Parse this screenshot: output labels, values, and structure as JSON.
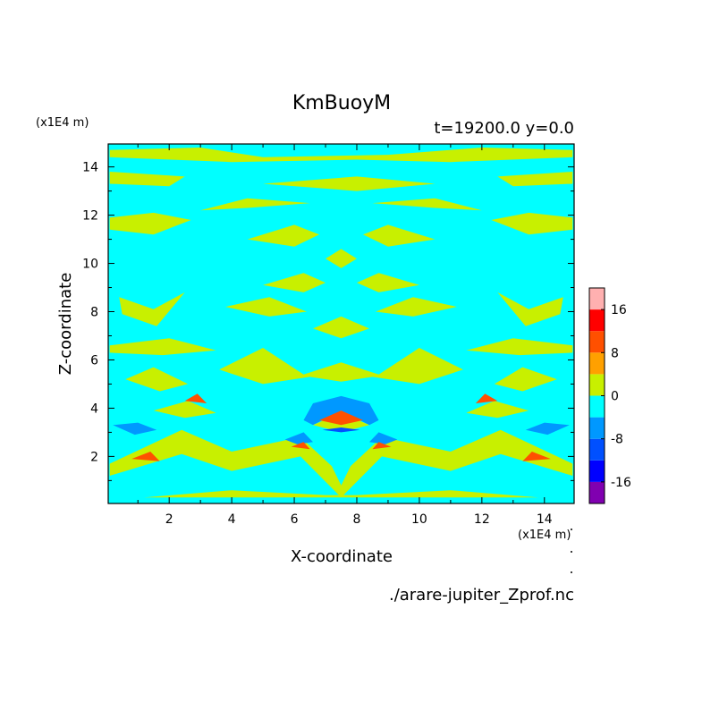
{
  "chart_data": {
    "type": "heatmap",
    "title": "KmBuoyM",
    "subtitle": "t=19200.0 y=0.0",
    "xlabel": "X-coordinate",
    "ylabel": "Z-coordinate",
    "x_unit": "(x1E4 m)",
    "y_unit": "(x1E4 m)",
    "xlim": [
      0.05,
      14.95
    ],
    "ylim": [
      0.05,
      14.95
    ],
    "x_ticks": [
      2,
      4,
      6,
      8,
      10,
      12,
      14
    ],
    "y_ticks": [
      2,
      4,
      6,
      8,
      10,
      12,
      14
    ],
    "grid": false,
    "colorbar": {
      "position": "right",
      "levels": [
        -20,
        -16,
        -12,
        -8,
        -4,
        0,
        4,
        8,
        12,
        16,
        20
      ],
      "tick_labels": [
        "-16",
        "-8",
        "0",
        "8",
        "16"
      ],
      "tick_values": [
        -16,
        -8,
        0,
        8,
        16
      ],
      "colors": [
        "#8000b0",
        "#0000ff",
        "#0050ff",
        "#0098ff",
        "#00ffff",
        "#c8f000",
        "#ffa000",
        "#ff5000",
        "#ff0000",
        "#ffb0b0"
      ]
    },
    "background_level_color": "#00ffff",
    "regions": [
      {
        "level": 0,
        "points": [
          [
            0.1,
            14.7
          ],
          [
            3,
            14.8
          ],
          [
            5,
            14.4
          ],
          [
            9,
            14.5
          ],
          [
            12,
            14.8
          ],
          [
            14.9,
            14.7
          ],
          [
            14.9,
            14.4
          ],
          [
            11,
            14.2
          ],
          [
            8,
            14.3
          ],
          [
            4,
            14.2
          ],
          [
            0.1,
            14.4
          ]
        ]
      },
      {
        "level": 0,
        "points": [
          [
            0.1,
            13.3
          ],
          [
            2,
            13.2
          ],
          [
            2.5,
            13.6
          ],
          [
            0.1,
            13.8
          ]
        ]
      },
      {
        "level": 0,
        "points": [
          [
            12.5,
            13.6
          ],
          [
            13,
            13.2
          ],
          [
            14.9,
            13.3
          ],
          [
            14.9,
            13.8
          ]
        ]
      },
      {
        "level": 0,
        "points": [
          [
            5,
            13.3
          ],
          [
            8,
            13
          ],
          [
            10.5,
            13.3
          ],
          [
            8,
            13.6
          ]
        ]
      },
      {
        "level": 0,
        "points": [
          [
            0.1,
            11.4
          ],
          [
            1.5,
            11.2
          ],
          [
            2.7,
            11.8
          ],
          [
            1.5,
            12.1
          ],
          [
            0.1,
            11.9
          ]
        ]
      },
      {
        "level": 0,
        "points": [
          [
            12.3,
            11.8
          ],
          [
            13.5,
            11.2
          ],
          [
            14.9,
            11.4
          ],
          [
            14.9,
            11.9
          ],
          [
            13.5,
            12.1
          ]
        ]
      },
      {
        "level": 0,
        "points": [
          [
            3,
            12.2
          ],
          [
            4.5,
            12.7
          ],
          [
            6.5,
            12.5
          ],
          [
            4.5,
            12.3
          ]
        ]
      },
      {
        "level": 0,
        "points": [
          [
            8.5,
            12.5
          ],
          [
            10.5,
            12.7
          ],
          [
            12,
            12.2
          ],
          [
            10.5,
            12.3
          ]
        ]
      },
      {
        "level": 0,
        "points": [
          [
            4.5,
            11
          ],
          [
            6,
            11.6
          ],
          [
            6.8,
            11.2
          ],
          [
            6,
            10.7
          ]
        ]
      },
      {
        "level": 0,
        "points": [
          [
            8.2,
            11.2
          ],
          [
            9,
            11.6
          ],
          [
            10.5,
            11
          ],
          [
            9,
            10.7
          ]
        ]
      },
      {
        "level": 0,
        "points": [
          [
            7,
            10.2
          ],
          [
            7.5,
            10.6
          ],
          [
            8,
            10.2
          ],
          [
            7.5,
            9.8
          ]
        ]
      },
      {
        "level": 0,
        "points": [
          [
            0.4,
            8.6
          ],
          [
            1.5,
            8.1
          ],
          [
            2.5,
            8.8
          ],
          [
            1.6,
            7.4
          ],
          [
            0.5,
            7.9
          ]
        ]
      },
      {
        "level": 0,
        "points": [
          [
            12.5,
            8.8
          ],
          [
            13.5,
            8.1
          ],
          [
            14.6,
            8.6
          ],
          [
            14.5,
            7.9
          ],
          [
            13.4,
            7.4
          ]
        ]
      },
      {
        "level": 0,
        "points": [
          [
            5,
            9.1
          ],
          [
            6.3,
            8.8
          ],
          [
            7,
            9.2
          ],
          [
            6.3,
            9.6
          ]
        ]
      },
      {
        "level": 0,
        "points": [
          [
            8,
            9.2
          ],
          [
            8.7,
            8.8
          ],
          [
            10,
            9.1
          ],
          [
            8.7,
            9.6
          ]
        ]
      },
      {
        "level": 0,
        "points": [
          [
            3.8,
            8.2
          ],
          [
            5.2,
            8.6
          ],
          [
            6.4,
            8
          ],
          [
            5.2,
            7.8
          ]
        ]
      },
      {
        "level": 0,
        "points": [
          [
            8.6,
            8
          ],
          [
            9.8,
            8.6
          ],
          [
            11.2,
            8.2
          ],
          [
            9.8,
            7.8
          ]
        ]
      },
      {
        "level": 0,
        "points": [
          [
            6.6,
            7.3
          ],
          [
            7.5,
            7.8
          ],
          [
            8.4,
            7.3
          ],
          [
            7.5,
            6.9
          ]
        ]
      },
      {
        "level": 0,
        "points": [
          [
            0.1,
            6.6
          ],
          [
            2,
            6.9
          ],
          [
            3.5,
            6.4
          ],
          [
            1.8,
            6.2
          ],
          [
            0.1,
            6.3
          ]
        ]
      },
      {
        "level": 0,
        "points": [
          [
            11.5,
            6.4
          ],
          [
            13,
            6.9
          ],
          [
            14.9,
            6.6
          ],
          [
            14.9,
            6.3
          ],
          [
            13.2,
            6.2
          ]
        ]
      },
      {
        "level": 0,
        "points": [
          [
            3.6,
            5.6
          ],
          [
            5,
            6.5
          ],
          [
            6.3,
            5.4
          ],
          [
            7.5,
            5.9
          ],
          [
            8.7,
            5.4
          ],
          [
            10,
            6.5
          ],
          [
            11.4,
            5.6
          ],
          [
            10,
            5
          ],
          [
            8.5,
            5.3
          ],
          [
            7.5,
            5.1
          ],
          [
            6.5,
            5.3
          ],
          [
            5,
            5
          ]
        ]
      },
      {
        "level": 0,
        "points": [
          [
            0.6,
            5.2
          ],
          [
            1.5,
            5.7
          ],
          [
            2.6,
            5
          ],
          [
            1.7,
            4.7
          ]
        ]
      },
      {
        "level": 0,
        "points": [
          [
            12.4,
            5
          ],
          [
            13.3,
            5.7
          ],
          [
            14.4,
            5.2
          ],
          [
            13.3,
            4.7
          ]
        ]
      },
      {
        "level": 0,
        "points": [
          [
            1.5,
            3.9
          ],
          [
            2.6,
            4.3
          ],
          [
            3.5,
            3.8
          ],
          [
            2.5,
            3.6
          ]
        ]
      },
      {
        "level": 0,
        "points": [
          [
            11.5,
            3.8
          ],
          [
            12.4,
            4.3
          ],
          [
            13.5,
            3.9
          ],
          [
            12.5,
            3.6
          ]
        ]
      },
      {
        "level": 0,
        "points": [
          [
            0.1,
            1.7
          ],
          [
            2.4,
            3.1
          ],
          [
            4,
            2.2
          ],
          [
            6.2,
            2.8
          ],
          [
            7.2,
            1.6
          ],
          [
            7.5,
            0.8
          ],
          [
            7.8,
            1.6
          ],
          [
            8.8,
            2.8
          ],
          [
            11,
            2.2
          ],
          [
            12.6,
            3.1
          ],
          [
            14.9,
            1.7
          ],
          [
            14.9,
            1.2
          ],
          [
            12.6,
            2.1
          ],
          [
            11,
            1.4
          ],
          [
            8.8,
            2
          ],
          [
            7.5,
            0.3
          ],
          [
            6.2,
            2
          ],
          [
            4,
            1.4
          ],
          [
            2.4,
            2.1
          ],
          [
            0.1,
            1.2
          ]
        ]
      },
      {
        "level": 0,
        "points": [
          [
            1.2,
            0.3
          ],
          [
            4,
            0.6
          ],
          [
            7,
            0.4
          ],
          [
            8,
            0.4
          ],
          [
            11,
            0.6
          ],
          [
            13.8,
            0.3
          ]
        ]
      },
      {
        "level": -8,
        "points": [
          [
            0.2,
            3.3
          ],
          [
            1,
            3.4
          ],
          [
            1.6,
            3.1
          ],
          [
            0.9,
            2.9
          ]
        ]
      },
      {
        "level": -8,
        "points": [
          [
            13.4,
            3.1
          ],
          [
            14,
            3.4
          ],
          [
            14.8,
            3.3
          ],
          [
            14.1,
            2.9
          ]
        ]
      },
      {
        "level": -8,
        "points": [
          [
            6.3,
            3.5
          ],
          [
            6.6,
            4.2
          ],
          [
            7.5,
            4.5
          ],
          [
            8.4,
            4.2
          ],
          [
            8.7,
            3.5
          ],
          [
            8.4,
            3.3
          ],
          [
            7.5,
            3.9
          ],
          [
            6.6,
            3.3
          ]
        ]
      },
      {
        "level": -8,
        "points": [
          [
            5.7,
            2.7
          ],
          [
            6.3,
            3
          ],
          [
            6.6,
            2.6
          ],
          [
            6.1,
            2.5
          ]
        ]
      },
      {
        "level": -8,
        "points": [
          [
            8.4,
            2.6
          ],
          [
            8.7,
            3
          ],
          [
            9.3,
            2.7
          ],
          [
            8.9,
            2.5
          ]
        ]
      },
      {
        "level": 0,
        "points": [
          [
            6.6,
            3.3
          ],
          [
            7.5,
            3.8
          ],
          [
            8.4,
            3.3
          ],
          [
            7.5,
            3
          ]
        ]
      },
      {
        "level": 8,
        "points": [
          [
            6.8,
            3.5
          ],
          [
            7.5,
            3.9
          ],
          [
            8.2,
            3.5
          ],
          [
            7.5,
            3.3
          ]
        ]
      },
      {
        "level": 8,
        "points": [
          [
            5.9,
            2.4
          ],
          [
            6.3,
            2.6
          ],
          [
            6.5,
            2.3
          ]
        ]
      },
      {
        "level": 8,
        "points": [
          [
            8.5,
            2.3
          ],
          [
            8.7,
            2.6
          ],
          [
            9.1,
            2.4
          ]
        ]
      },
      {
        "level": 8,
        "points": [
          [
            0.8,
            1.9
          ],
          [
            1.4,
            2.2
          ],
          [
            1.7,
            1.8
          ]
        ]
      },
      {
        "level": 8,
        "points": [
          [
            13.3,
            1.8
          ],
          [
            13.6,
            2.2
          ],
          [
            14.2,
            1.9
          ]
        ]
      },
      {
        "level": 8,
        "points": [
          [
            2.5,
            4.3
          ],
          [
            2.9,
            4.6
          ],
          [
            3.2,
            4.2
          ]
        ]
      },
      {
        "level": 8,
        "points": [
          [
            11.8,
            4.2
          ],
          [
            12.1,
            4.6
          ],
          [
            12.5,
            4.3
          ]
        ]
      },
      {
        "level": -12,
        "points": [
          [
            6.9,
            3.1
          ],
          [
            7.5,
            3.2
          ],
          [
            8.1,
            3.1
          ],
          [
            7.5,
            3
          ]
        ]
      }
    ],
    "footer_text": "./arare-jupiter_Zprof.nc"
  }
}
